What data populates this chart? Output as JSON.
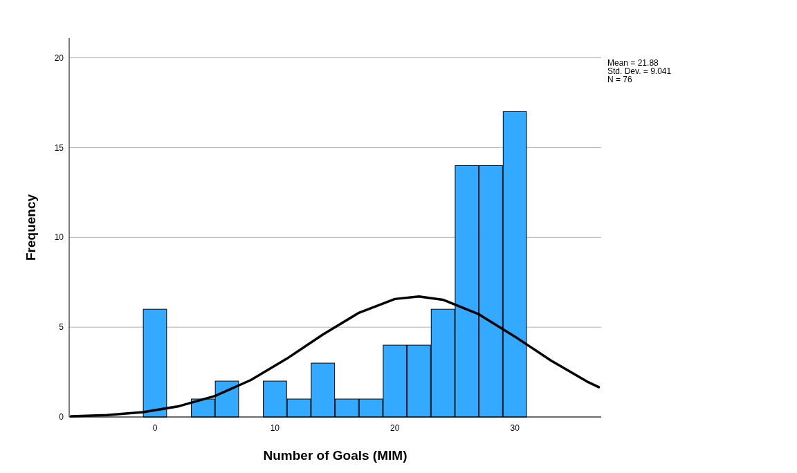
{
  "chart_data": {
    "type": "histogram",
    "xlabel": "Number of Goals (MIM)",
    "ylabel": "Frequency",
    "bins": [
      -1,
      1,
      3,
      5,
      7,
      9,
      11,
      13,
      15,
      17,
      19,
      21,
      23,
      25,
      27,
      29,
      31
    ],
    "values": [
      6,
      0,
      1,
      2,
      0,
      2,
      1,
      3,
      1,
      1,
      4,
      4,
      6,
      14,
      14,
      17
    ],
    "color": "#33aaff",
    "series": [
      {
        "type": "line",
        "color": "#000000",
        "x": [
          -7,
          -4,
          -1,
          2,
          5,
          8,
          11,
          14,
          17,
          20,
          22,
          24,
          27,
          30,
          33,
          36,
          37
        ],
        "values": [
          0.04,
          0.11,
          0.27,
          0.6,
          1.17,
          2.06,
          3.25,
          4.59,
          5.8,
          6.57,
          6.71,
          6.53,
          5.72,
          4.48,
          3.15,
          1.98,
          1.66
        ]
      }
    ],
    "xlim": [
      -7.15,
      37.2
    ],
    "ylim": [
      0,
      21.1
    ],
    "xticks": [
      0,
      10,
      20,
      30
    ],
    "yticks": [
      0,
      5,
      10,
      15,
      20
    ],
    "grid": "y",
    "annotations": [
      "Mean = 21.88",
      "Std. Dev. = 9.041",
      "N = 76"
    ]
  }
}
